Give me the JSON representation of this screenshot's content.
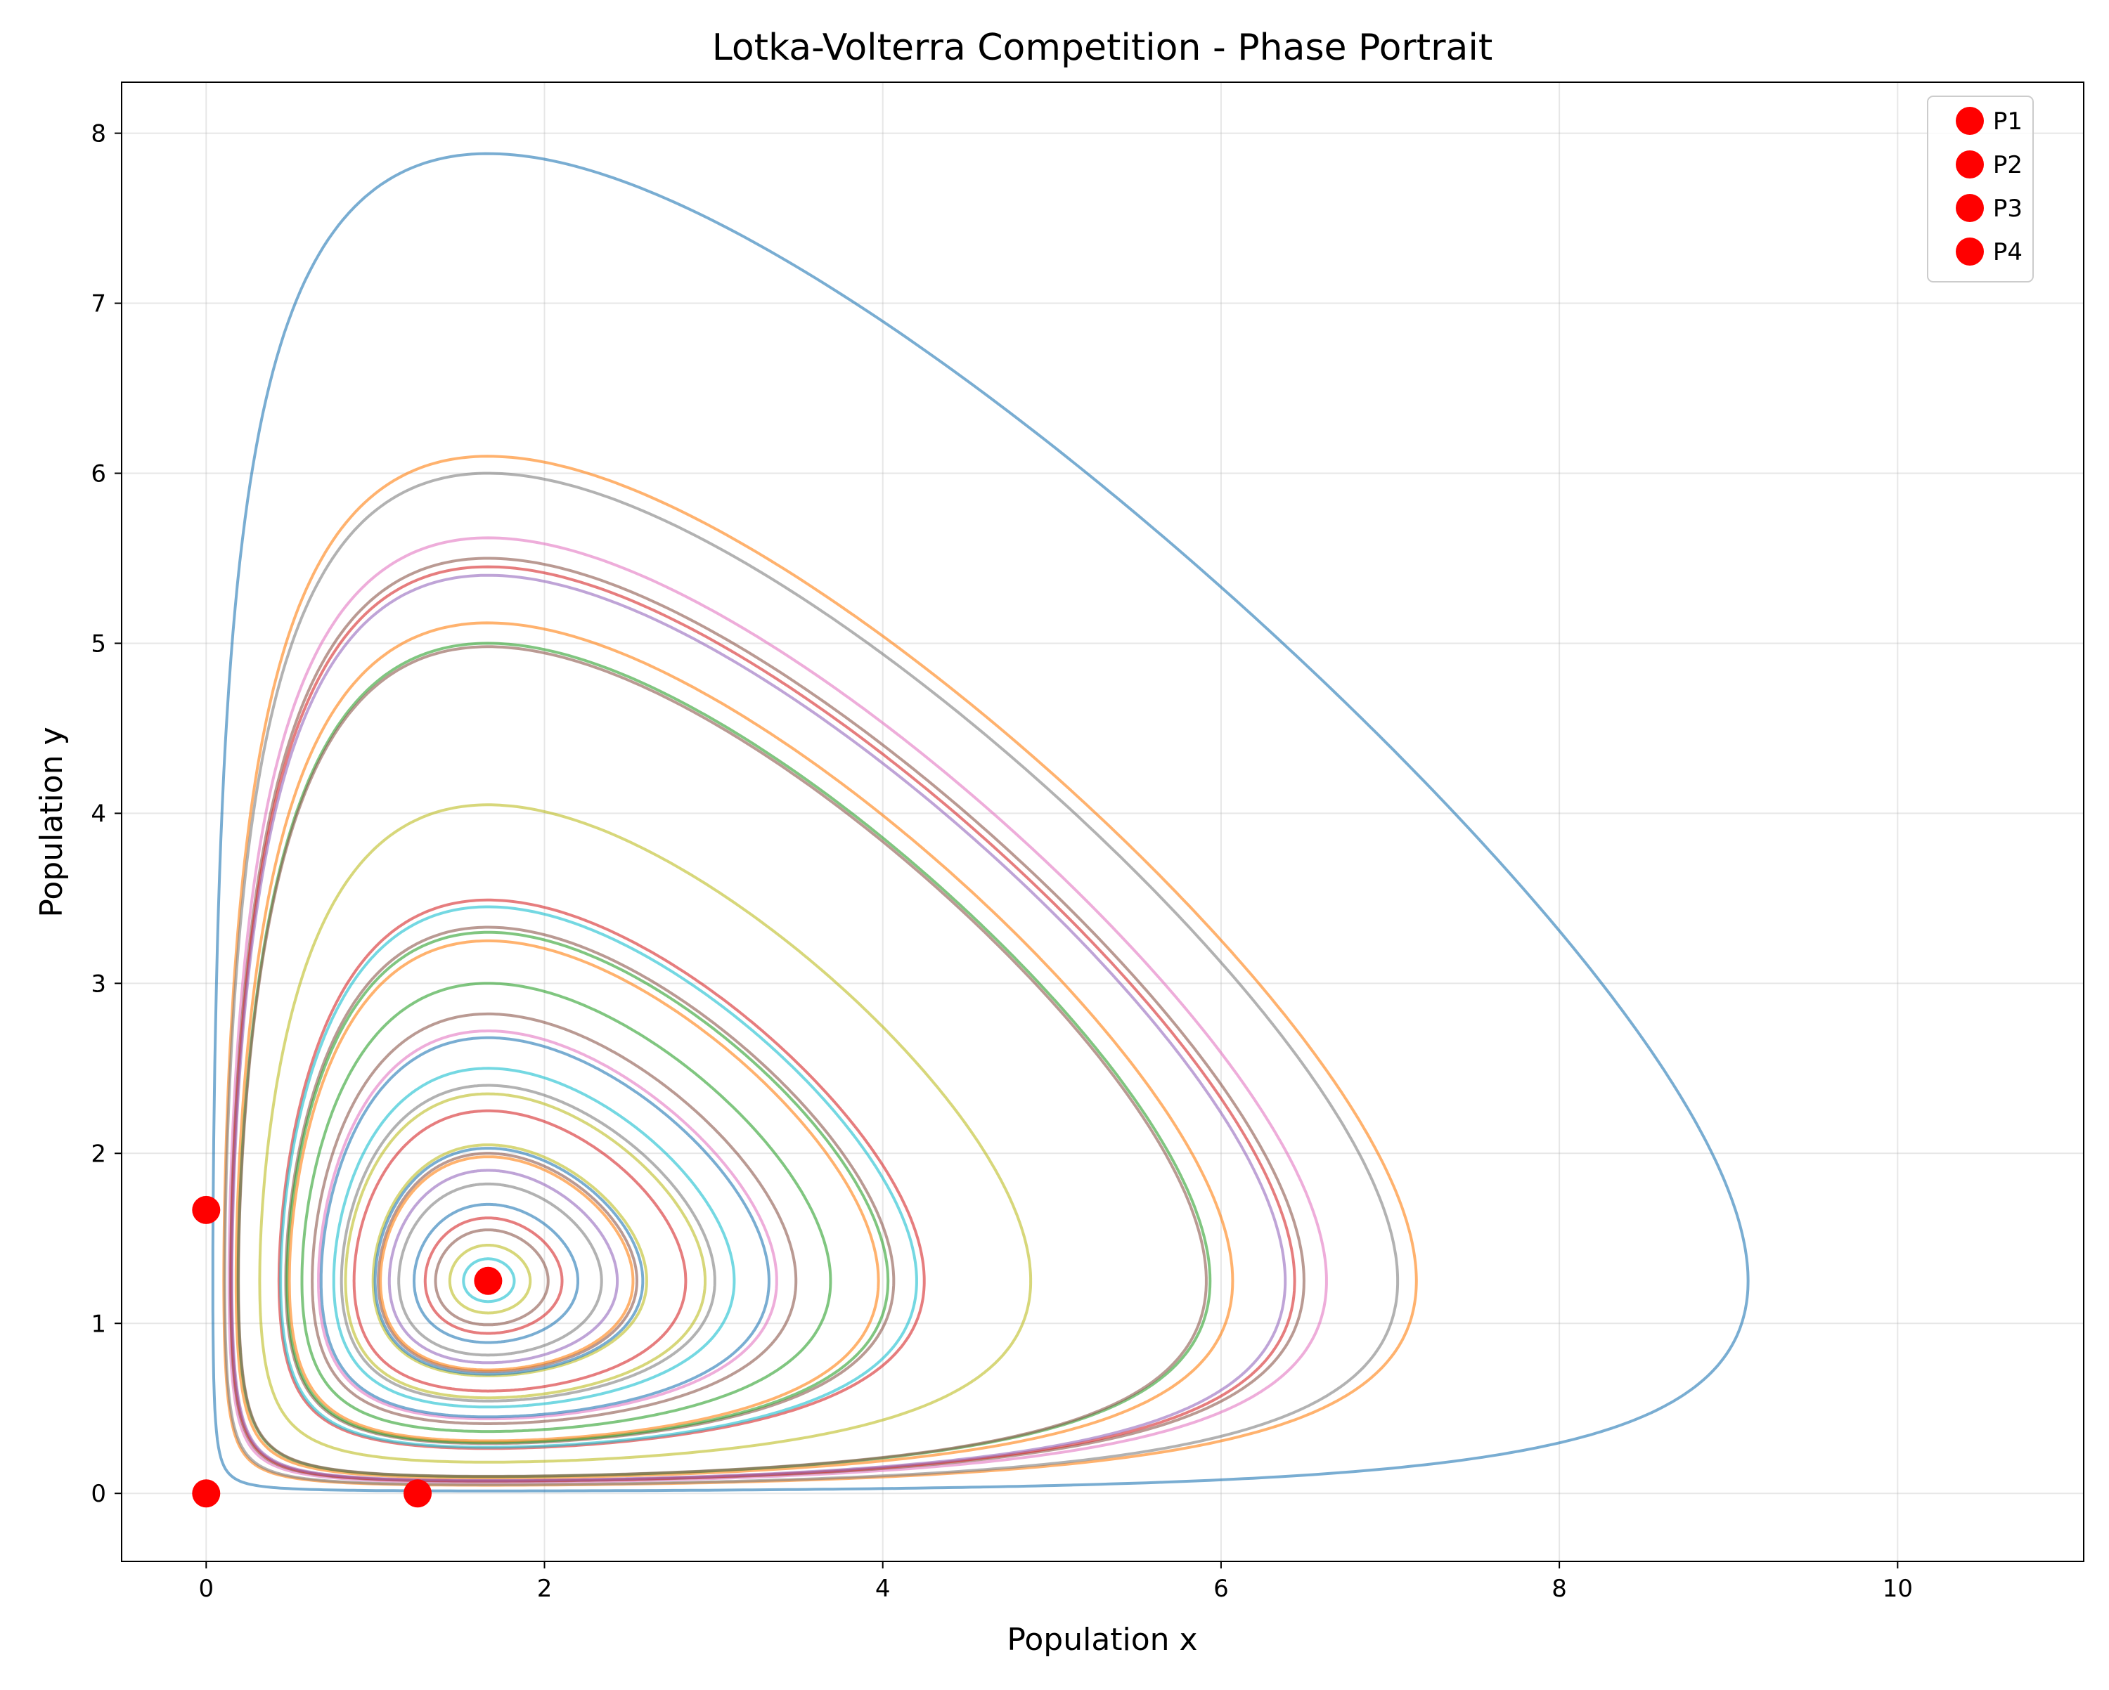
{
  "chart_data": {
    "type": "line",
    "title": "Lotka-Volterra Competition - Phase Portrait",
    "xlabel": "Population x",
    "ylabel": "Population y",
    "xlim": [
      -0.5,
      11.1
    ],
    "ylim": [
      -0.4,
      8.3
    ],
    "xticks": [
      0,
      2,
      4,
      6,
      8,
      10
    ],
    "yticks": [
      0,
      1,
      2,
      3,
      4,
      5,
      6,
      7,
      8
    ],
    "grid": true,
    "legend_position": "top-right",
    "equilibrium": {
      "x": 1.667,
      "y": 1.25
    },
    "orbits": [
      {
        "ymax": 7.88,
        "xmax": 10.5,
        "color": "#1f77b4"
      },
      {
        "ymax": 6.1,
        "xmax": 8.15,
        "color": "#ff7f0e"
      },
      {
        "ymax": 6.0,
        "xmax": 8.0,
        "color": "#7f7f7f"
      },
      {
        "ymax": 5.62,
        "xmax": 7.5,
        "color": "#e377c2"
      },
      {
        "ymax": 5.5,
        "xmax": 7.3,
        "color": "#8c564b"
      },
      {
        "ymax": 5.45,
        "xmax": 7.25,
        "color": "#d62728"
      },
      {
        "ymax": 5.4,
        "xmax": 7.2,
        "color": "#9467bd"
      },
      {
        "ymax": 5.12,
        "xmax": 6.8,
        "color": "#ff7f0e"
      },
      {
        "ymax": 5.0,
        "xmax": 6.65,
        "color": "#2ca02c"
      },
      {
        "ymax": 4.98,
        "xmax": 6.6,
        "color": "#8c564b"
      },
      {
        "ymax": 4.05,
        "xmax": 5.4,
        "color": "#bcbd22"
      },
      {
        "ymax": 3.49,
        "xmax": 4.65,
        "color": "#d62728"
      },
      {
        "ymax": 3.45,
        "xmax": 4.6,
        "color": "#17becf"
      },
      {
        "ymax": 3.33,
        "xmax": 4.42,
        "color": "#8c564b"
      },
      {
        "ymax": 3.3,
        "xmax": 4.38,
        "color": "#2ca02c"
      },
      {
        "ymax": 3.25,
        "xmax": 4.3,
        "color": "#ff7f0e"
      },
      {
        "ymax": 3.0,
        "xmax": 4.0,
        "color": "#2ca02c"
      },
      {
        "ymax": 2.82,
        "xmax": 3.75,
        "color": "#8c564b"
      },
      {
        "ymax": 2.72,
        "xmax": 3.6,
        "color": "#e377c2"
      },
      {
        "ymax": 2.68,
        "xmax": 3.55,
        "color": "#1f77b4"
      },
      {
        "ymax": 2.5,
        "xmax": 3.32,
        "color": "#17becf"
      },
      {
        "ymax": 2.4,
        "xmax": 3.2,
        "color": "#7f7f7f"
      },
      {
        "ymax": 2.35,
        "xmax": 3.12,
        "color": "#bcbd22"
      },
      {
        "ymax": 2.25,
        "xmax": 3.0,
        "color": "#d62728"
      },
      {
        "ymax": 2.05,
        "xmax": 2.72,
        "color": "#bcbd22"
      },
      {
        "ymax": 2.03,
        "xmax": 2.7,
        "color": "#1f77b4"
      },
      {
        "ymax": 2.0,
        "xmax": 2.66,
        "color": "#8c564b"
      },
      {
        "ymax": 1.98,
        "xmax": 2.64,
        "color": "#ff7f0e"
      },
      {
        "ymax": 1.9,
        "xmax": 2.55,
        "color": "#9467bd"
      },
      {
        "ymax": 1.82,
        "xmax": 2.45,
        "color": "#7f7f7f"
      },
      {
        "ymax": 1.7,
        "xmax": 2.3,
        "color": "#1f77b4"
      },
      {
        "ymax": 1.62,
        "xmax": 2.2,
        "color": "#d62728"
      },
      {
        "ymax": 1.55,
        "xmax": 2.12,
        "color": "#8c564b"
      },
      {
        "ymax": 1.46,
        "xmax": 2.0,
        "color": "#bcbd22"
      },
      {
        "ymax": 1.38,
        "xmax": 1.92,
        "color": "#17becf"
      }
    ],
    "points": [
      {
        "label": "P1",
        "x": 0,
        "y": 0,
        "color": "#ff0000"
      },
      {
        "label": "P2",
        "x": 1.25,
        "y": 0,
        "color": "#ff0000"
      },
      {
        "label": "P3",
        "x": 0,
        "y": 1.667,
        "color": "#ff0000"
      },
      {
        "label": "P4",
        "x": 1.667,
        "y": 1.25,
        "color": "#ff0000"
      }
    ]
  }
}
